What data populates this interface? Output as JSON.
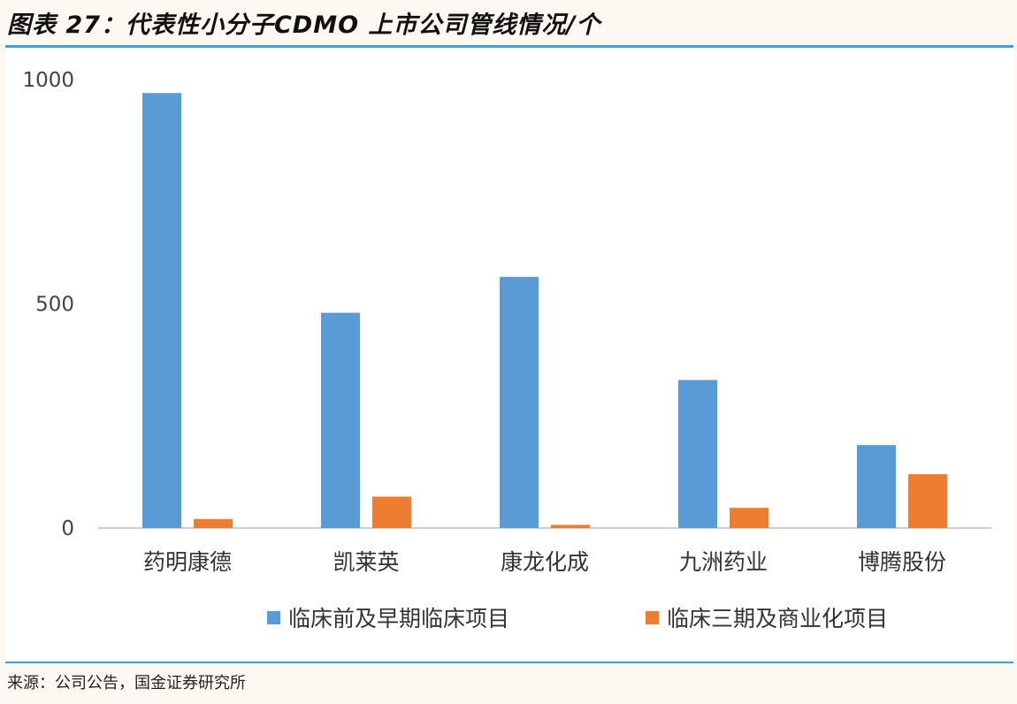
{
  "header": {
    "title": "图表 27：代表性小分子CDMO 上市公司管线情况/个"
  },
  "footer": {
    "source": "来源：公司公告，国金证券研究所"
  },
  "colors": {
    "series_blue": "#5b9bd5",
    "series_orange": "#ed7d31",
    "rule": "#3f9fd9"
  },
  "chart_data": {
    "type": "bar",
    "title": "",
    "xlabel": "",
    "ylabel": "",
    "ylim": [
      0,
      1000
    ],
    "yticks": [
      "0",
      "500",
      "1000"
    ],
    "ytick_values": [
      0,
      500,
      1000
    ],
    "grid": false,
    "legend_position": "bottom",
    "categories": [
      "药明康德",
      "凯莱英",
      "康龙化成",
      "九洲药业",
      "博腾股份"
    ],
    "series": [
      {
        "name": "临床前及早期临床项目",
        "values": [
          970,
          480,
          560,
          330,
          185
        ],
        "color": "#5b9bd5"
      },
      {
        "name": "临床三期及商业化项目",
        "values": [
          20,
          70,
          7,
          45,
          120
        ],
        "color": "#ed7d31"
      }
    ]
  }
}
